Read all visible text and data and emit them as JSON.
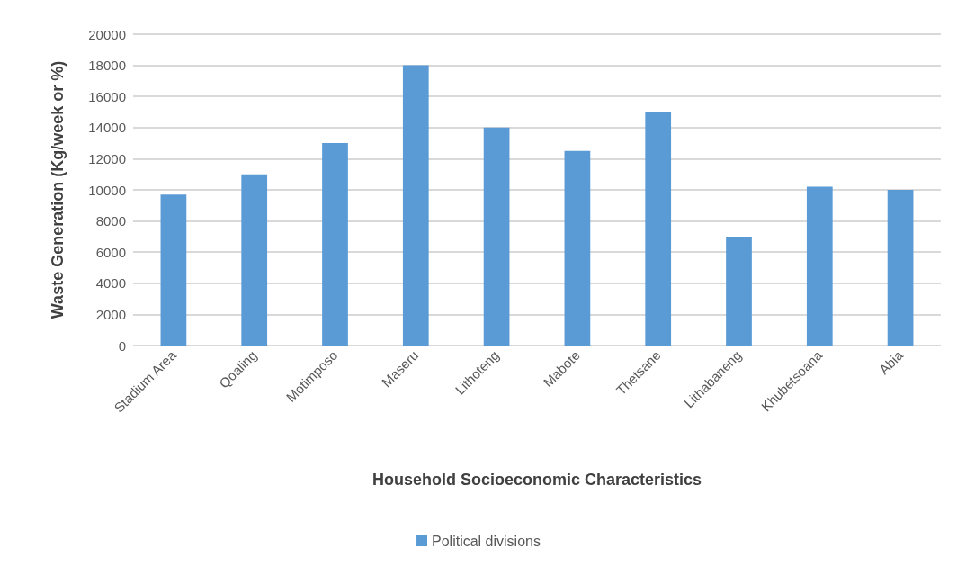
{
  "chart_data": {
    "type": "bar",
    "xlabel": "Household Socioeconomic Characteristics",
    "ylabel": "Waste Generation (Kg/week or %)",
    "categories": [
      "Stadium Area",
      "Qoaling",
      "Motimposo",
      "Maseru",
      "Lithoteng",
      "Mabote",
      "Thetsane",
      "Lithabaneng",
      "Khubetsoana",
      "Abia"
    ],
    "series": [
      {
        "name": "Political divisions",
        "color": "#5b9bd5",
        "values": [
          9700,
          11000,
          13000,
          18000,
          14000,
          12500,
          15000,
          7000,
          10200,
          10000
        ]
      }
    ],
    "ylim": [
      0,
      20000
    ],
    "yticks": [
      0,
      2000,
      4000,
      6000,
      8000,
      10000,
      12000,
      14000,
      16000,
      18000,
      20000
    ],
    "grid": "y",
    "legend": "bottom"
  }
}
